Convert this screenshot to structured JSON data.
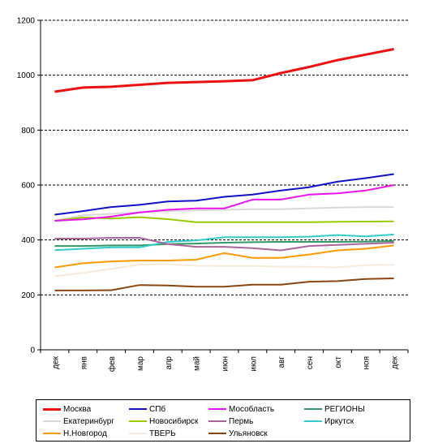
{
  "chart_data": {
    "type": "line",
    "categories": [
      "дек",
      "янв",
      "фев",
      "мар",
      "апр",
      "май",
      "июн",
      "июл",
      "авг",
      "сен",
      "окт",
      "ноя",
      "дек"
    ],
    "ylim": [
      0,
      1200
    ],
    "yticks": [
      "0",
      "200",
      "400",
      "600",
      "800",
      "1000",
      "1200"
    ],
    "grid": "horizontal dashed",
    "legend_position": "bottom",
    "series": [
      {
        "name": "Москва",
        "color": "#ee1111",
        "values": [
          940,
          955,
          958,
          965,
          972,
          975,
          978,
          982,
          1008,
          1030,
          1055,
          1075,
          1095
        ]
      },
      {
        "name": "СПб",
        "color": "#1111cc",
        "values": [
          492,
          505,
          520,
          528,
          540,
          543,
          557,
          565,
          580,
          592,
          612,
          625,
          640
        ]
      },
      {
        "name": "Мособласть",
        "color": "#ee11ee",
        "values": [
          470,
          475,
          485,
          500,
          510,
          515,
          515,
          547,
          547,
          565,
          570,
          580,
          600
        ]
      },
      {
        "name": "РЕГИОНЫ",
        "color": "#339966",
        "values": [
          378,
          378,
          380,
          380,
          385,
          387,
          390,
          392,
          393,
          393,
          393,
          394,
          396
        ]
      },
      {
        "name": "Екатеринбург",
        "color": "#d9d9d9",
        "values": [
          470,
          490,
          495,
          500,
          505,
          508,
          510,
          512,
          512,
          515,
          518,
          520,
          520
        ]
      },
      {
        "name": "Новосибирск",
        "color": "#99cc00",
        "values": [
          470,
          482,
          478,
          483,
          476,
          465,
          465,
          465,
          465,
          465,
          466,
          467,
          468
        ]
      },
      {
        "name": "Пермь",
        "color": "#aa6699",
        "values": [
          405,
          405,
          408,
          408,
          385,
          375,
          375,
          370,
          362,
          378,
          382,
          386,
          390
        ]
      },
      {
        "name": "Иркутск",
        "color": "#33cccc",
        "values": [
          363,
          368,
          373,
          373,
          393,
          398,
          410,
          410,
          410,
          412,
          418,
          413,
          420
        ]
      },
      {
        "name": "Н.Новгород",
        "color": "#ff9900",
        "values": [
          300,
          315,
          322,
          325,
          325,
          328,
          352,
          335,
          335,
          347,
          362,
          368,
          380
        ]
      },
      {
        "name": "ТВЕРЬ",
        "color": "#f6ead8",
        "values": [
          268,
          280,
          295,
          310,
          312,
          306,
          305,
          305,
          303,
          302,
          300,
          308,
          310
        ]
      },
      {
        "name": "Ульяновск",
        "color": "#8b4513",
        "values": [
          216,
          216,
          217,
          236,
          234,
          230,
          230,
          237,
          237,
          248,
          250,
          258,
          260
        ]
      }
    ]
  }
}
